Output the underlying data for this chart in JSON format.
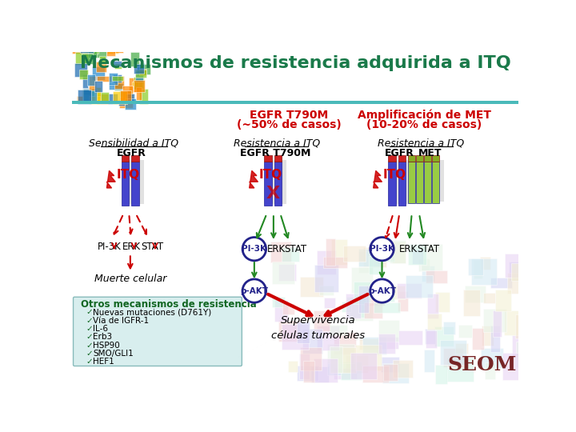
{
  "title": "Mecanismos de resistencia adquirida a ITQ",
  "title_color": "#1a7a4a",
  "title_fontsize": 16,
  "bg_color": "#ffffff",
  "header_line_color": "#5bc8c8",
  "col2_header_line1": "EGFR T790M",
  "col2_header_line2": "(~50% de casos)",
  "col3_header_line1": "Amplificación de MET",
  "col3_header_line2": "(10-20% de casos)",
  "col1_subheader": "Sensibilidad a ITQ",
  "col2_subheader": "Resistencia a ITQ",
  "col3_subheader": "Resistencia a ITQ",
  "col1_label": "EGFR",
  "col2_label": "EGFR T790M",
  "col3_label1": "EGFR",
  "col3_label2": "MET",
  "red_color": "#cc0000",
  "green_color": "#228822",
  "dark_blue": "#22228a",
  "otros_title": "Otros mecanismos de resistencia",
  "otros_items": [
    "Nuevas mutaciones (D761Y)",
    "Vía de IGFR-1",
    "IL-6",
    "Erb3",
    "HSP90",
    "SMO/GLI1",
    "HEF1"
  ],
  "muerte_text": "Muerte celular",
  "supervivencia_text": "Supervivencia\ncélulas tumorales",
  "seom_color": "#6b1010",
  "otros_bg": "#d8eeee"
}
